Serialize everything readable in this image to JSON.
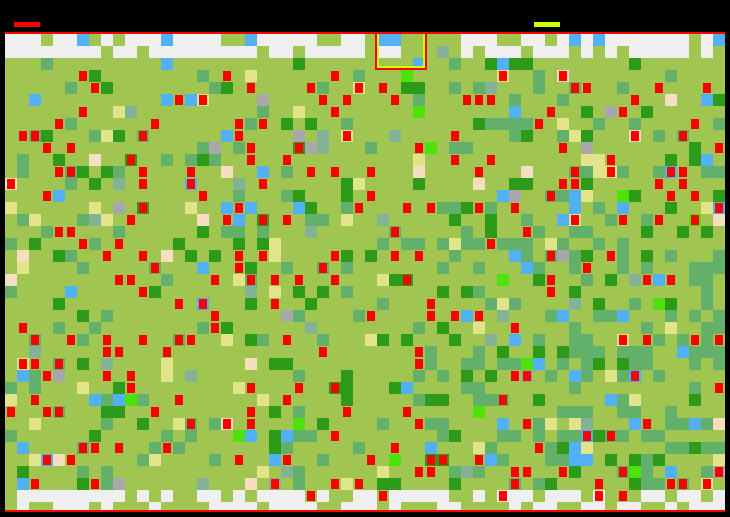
{
  "players": [
    {
      "name_color": "#ff0000",
      "indicator": "player-1-bar"
    },
    {
      "name_color": "#ccff00",
      "indicator": "player-2-bar"
    }
  ],
  "colors": {
    "background": "#000000",
    "border": "#ff0000",
    "grass": "#a0c550",
    "forest": "#2e9a1a",
    "marsh": "#62b06a",
    "swamp": "#84b294",
    "water": "#52b0f4",
    "snow": "#efefef",
    "rock": "#d0d0d0",
    "sand": "#f6dfc0",
    "meadow": "#e2e48a",
    "bright": "#4ce20a",
    "stone": "#a8a8a8",
    "unit": "#ff0000",
    "selection": "#ccff00"
  }
}
